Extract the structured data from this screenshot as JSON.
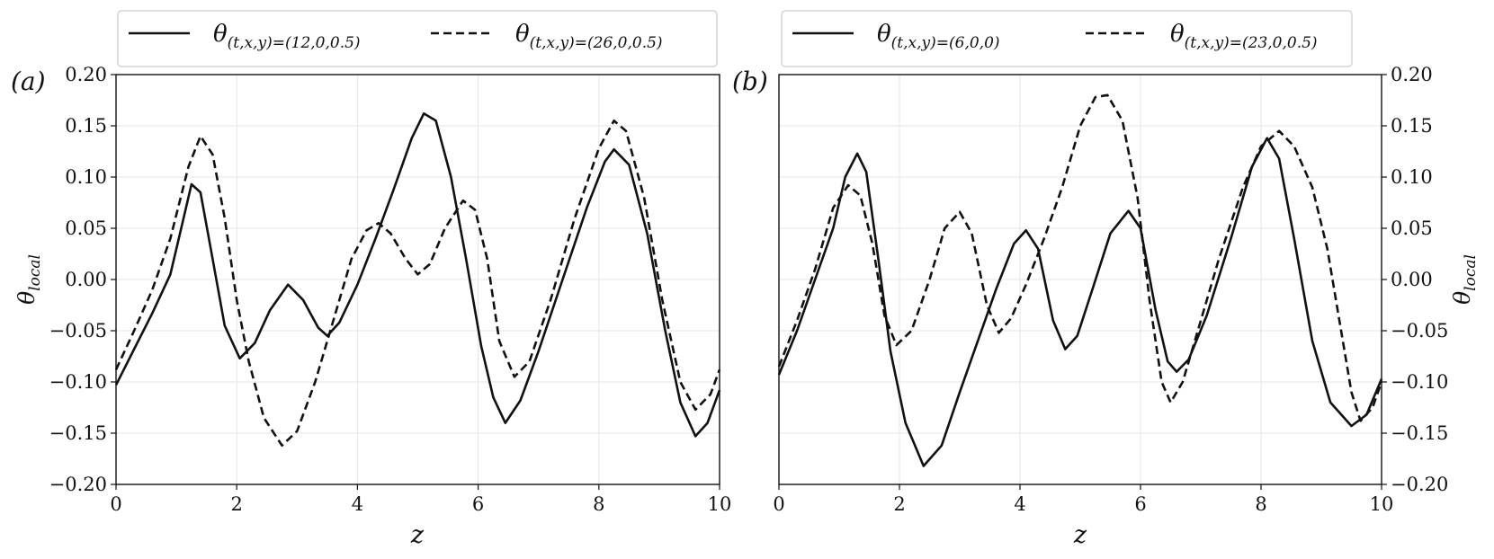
{
  "chart_data": [
    {
      "type": "line",
      "panel_label": "(a)",
      "xlabel": "z",
      "ylabel": "θlocal",
      "ylabel_main": "θ",
      "ylabel_sub": "local",
      "xlim": [
        0,
        10
      ],
      "ylim": [
        -0.2,
        0.2
      ],
      "grid": true,
      "legend_position": "top",
      "x_ticks": [
        0,
        2,
        4,
        6,
        8,
        10
      ],
      "x_tick_labels": [
        "0",
        "2",
        "4",
        "6",
        "8",
        "10"
      ],
      "y_ticks": [
        -0.2,
        -0.15,
        -0.1,
        -0.05,
        0.0,
        0.05,
        0.1,
        0.15,
        0.2
      ],
      "y_tick_labels": [
        "−0.20",
        "−0.15",
        "−0.10",
        "−0.05",
        "0.00",
        "0.05",
        "0.10",
        "0.15",
        "0.20"
      ],
      "series": [
        {
          "name": "θ(t,x,y)=(12,0,0.5)",
          "label_main": "θ",
          "label_sub": "(t,x,y)=(12,0,0.5)",
          "style": "solid",
          "color": "#111111",
          "points": [
            [
              0,
              -0.103
            ],
            [
              0.3,
              -0.068
            ],
            [
              0.6,
              -0.033
            ],
            [
              0.9,
              0.005
            ],
            [
              1.1,
              0.055
            ],
            [
              1.25,
              0.093
            ],
            [
              1.4,
              0.085
            ],
            [
              1.6,
              0.02
            ],
            [
              1.8,
              -0.045
            ],
            [
              2.05,
              -0.077
            ],
            [
              2.3,
              -0.062
            ],
            [
              2.55,
              -0.03
            ],
            [
              2.85,
              -0.005
            ],
            [
              3.1,
              -0.02
            ],
            [
              3.35,
              -0.047
            ],
            [
              3.5,
              -0.055
            ],
            [
              3.7,
              -0.042
            ],
            [
              4.0,
              -0.005
            ],
            [
              4.3,
              0.04
            ],
            [
              4.6,
              0.088
            ],
            [
              4.9,
              0.138
            ],
            [
              5.1,
              0.162
            ],
            [
              5.3,
              0.155
            ],
            [
              5.55,
              0.1
            ],
            [
              5.8,
              0.02
            ],
            [
              6.05,
              -0.065
            ],
            [
              6.25,
              -0.115
            ],
            [
              6.45,
              -0.14
            ],
            [
              6.7,
              -0.118
            ],
            [
              7.0,
              -0.07
            ],
            [
              7.4,
              0.0
            ],
            [
              7.8,
              0.07
            ],
            [
              8.1,
              0.115
            ],
            [
              8.25,
              0.127
            ],
            [
              8.5,
              0.112
            ],
            [
              8.8,
              0.045
            ],
            [
              9.1,
              -0.05
            ],
            [
              9.35,
              -0.12
            ],
            [
              9.6,
              -0.153
            ],
            [
              9.8,
              -0.14
            ],
            [
              10,
              -0.108
            ]
          ]
        },
        {
          "name": "θ(t,x,y)=(26,0,0.5)",
          "label_main": "θ",
          "label_sub": "(t,x,y)=(26,0,0.5)",
          "style": "dashed",
          "color": "#111111",
          "points": [
            [
              0,
              -0.088
            ],
            [
              0.3,
              -0.05
            ],
            [
              0.6,
              -0.01
            ],
            [
              0.9,
              0.04
            ],
            [
              1.2,
              0.11
            ],
            [
              1.4,
              0.14
            ],
            [
              1.6,
              0.122
            ],
            [
              1.8,
              0.06
            ],
            [
              2.0,
              -0.02
            ],
            [
              2.2,
              -0.08
            ],
            [
              2.45,
              -0.135
            ],
            [
              2.75,
              -0.162
            ],
            [
              3.0,
              -0.148
            ],
            [
              3.3,
              -0.1
            ],
            [
              3.6,
              -0.04
            ],
            [
              3.9,
              0.02
            ],
            [
              4.15,
              0.048
            ],
            [
              4.35,
              0.055
            ],
            [
              4.55,
              0.045
            ],
            [
              4.8,
              0.02
            ],
            [
              5.0,
              0.005
            ],
            [
              5.2,
              0.015
            ],
            [
              5.45,
              0.05
            ],
            [
              5.75,
              0.077
            ],
            [
              5.95,
              0.068
            ],
            [
              6.15,
              0.02
            ],
            [
              6.35,
              -0.06
            ],
            [
              6.6,
              -0.095
            ],
            [
              6.85,
              -0.08
            ],
            [
              7.2,
              -0.02
            ],
            [
              7.6,
              0.06
            ],
            [
              8.0,
              0.128
            ],
            [
              8.25,
              0.155
            ],
            [
              8.45,
              0.145
            ],
            [
              8.75,
              0.08
            ],
            [
              9.05,
              -0.02
            ],
            [
              9.35,
              -0.1
            ],
            [
              9.6,
              -0.127
            ],
            [
              9.85,
              -0.112
            ],
            [
              10,
              -0.088
            ]
          ]
        }
      ]
    },
    {
      "type": "line",
      "panel_label": "(b)",
      "xlabel": "z",
      "ylabel": "θlocal",
      "ylabel_main": "θ",
      "ylabel_sub": "local",
      "xlim": [
        0,
        10
      ],
      "ylim": [
        -0.2,
        0.2
      ],
      "grid": true,
      "legend_position": "top",
      "y_axis_side": "right",
      "x_ticks": [
        0,
        2,
        4,
        6,
        8,
        10
      ],
      "x_tick_labels": [
        "0",
        "2",
        "4",
        "6",
        "8",
        "10"
      ],
      "y_ticks": [
        -0.2,
        -0.15,
        -0.1,
        -0.05,
        0.0,
        0.05,
        0.1,
        0.15,
        0.2
      ],
      "y_tick_labels": [
        "−0.20",
        "−0.15",
        "−0.10",
        "−0.05",
        "0.00",
        "0.05",
        "0.10",
        "0.15",
        "0.20"
      ],
      "series": [
        {
          "name": "θ(t,x,y)=(6,0,0)",
          "label_main": "θ",
          "label_sub": "(t,x,y)=(6,0,0)",
          "style": "solid",
          "color": "#111111",
          "points": [
            [
              0,
              -0.093
            ],
            [
              0.3,
              -0.05
            ],
            [
              0.6,
              0.0
            ],
            [
              0.9,
              0.05
            ],
            [
              1.1,
              0.1
            ],
            [
              1.3,
              0.123
            ],
            [
              1.45,
              0.105
            ],
            [
              1.65,
              0.02
            ],
            [
              1.85,
              -0.07
            ],
            [
              2.1,
              -0.14
            ],
            [
              2.4,
              -0.182
            ],
            [
              2.7,
              -0.162
            ],
            [
              3.0,
              -0.11
            ],
            [
              3.3,
              -0.06
            ],
            [
              3.6,
              -0.01
            ],
            [
              3.9,
              0.035
            ],
            [
              4.1,
              0.048
            ],
            [
              4.3,
              0.03
            ],
            [
              4.55,
              -0.04
            ],
            [
              4.75,
              -0.068
            ],
            [
              4.95,
              -0.055
            ],
            [
              5.2,
              -0.01
            ],
            [
              5.5,
              0.045
            ],
            [
              5.8,
              0.067
            ],
            [
              6.0,
              0.05
            ],
            [
              6.25,
              -0.03
            ],
            [
              6.45,
              -0.08
            ],
            [
              6.6,
              -0.09
            ],
            [
              6.8,
              -0.078
            ],
            [
              7.1,
              -0.035
            ],
            [
              7.5,
              0.04
            ],
            [
              7.85,
              0.11
            ],
            [
              8.1,
              0.138
            ],
            [
              8.3,
              0.118
            ],
            [
              8.55,
              0.04
            ],
            [
              8.85,
              -0.06
            ],
            [
              9.15,
              -0.12
            ],
            [
              9.5,
              -0.143
            ],
            [
              9.75,
              -0.132
            ],
            [
              10,
              -0.097
            ]
          ]
        },
        {
          "name": "θ(t,x,y)=(23,0,0.5)",
          "label_main": "θ",
          "label_sub": "(t,x,y)=(23,0,0.5)",
          "style": "dashed",
          "color": "#111111",
          "points": [
            [
              0,
              -0.085
            ],
            [
              0.3,
              -0.04
            ],
            [
              0.6,
              0.01
            ],
            [
              0.9,
              0.07
            ],
            [
              1.15,
              0.092
            ],
            [
              1.35,
              0.082
            ],
            [
              1.55,
              0.035
            ],
            [
              1.75,
              -0.035
            ],
            [
              1.95,
              -0.064
            ],
            [
              2.2,
              -0.05
            ],
            [
              2.5,
              0.0
            ],
            [
              2.75,
              0.05
            ],
            [
              3.0,
              0.066
            ],
            [
              3.2,
              0.045
            ],
            [
              3.45,
              -0.025
            ],
            [
              3.65,
              -0.052
            ],
            [
              3.85,
              -0.038
            ],
            [
              4.1,
              -0.005
            ],
            [
              4.4,
              0.04
            ],
            [
              4.7,
              0.09
            ],
            [
              5.0,
              0.15
            ],
            [
              5.25,
              0.178
            ],
            [
              5.45,
              0.18
            ],
            [
              5.7,
              0.155
            ],
            [
              5.95,
              0.08
            ],
            [
              6.15,
              -0.02
            ],
            [
              6.35,
              -0.1
            ],
            [
              6.5,
              -0.12
            ],
            [
              6.7,
              -0.1
            ],
            [
              6.95,
              -0.05
            ],
            [
              7.3,
              0.02
            ],
            [
              7.7,
              0.09
            ],
            [
              8.0,
              0.13
            ],
            [
              8.3,
              0.145
            ],
            [
              8.55,
              0.13
            ],
            [
              8.85,
              0.09
            ],
            [
              9.1,
              0.03
            ],
            [
              9.3,
              -0.04
            ],
            [
              9.5,
              -0.11
            ],
            [
              9.65,
              -0.138
            ],
            [
              9.85,
              -0.125
            ],
            [
              10,
              -0.1
            ]
          ]
        }
      ]
    }
  ]
}
